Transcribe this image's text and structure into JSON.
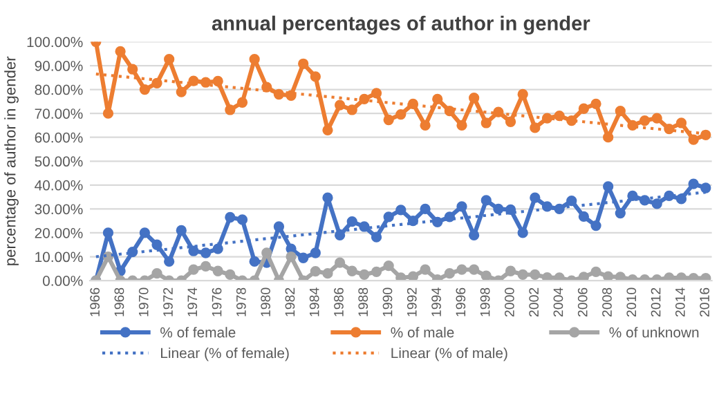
{
  "chart_data": {
    "type": "line",
    "title": "annual percentages of author in gender",
    "ylabel": "percentage of author in gender",
    "categories": [
      "1966",
      null,
      "1968",
      null,
      "1970",
      null,
      "1972",
      null,
      "1974",
      null,
      "1976",
      null,
      "1978",
      null,
      "1980",
      null,
      "1982",
      null,
      "1984",
      null,
      "1986",
      null,
      "1988",
      null,
      "1990",
      null,
      "1992",
      null,
      "1994",
      null,
      "1996",
      null,
      "1998",
      null,
      "2000",
      null,
      "2002",
      null,
      "2004",
      null,
      "2006",
      null,
      "2008",
      null,
      "2010",
      null,
      "2012",
      null,
      "2014",
      null,
      "2016"
    ],
    "series": [
      {
        "name": "% of female",
        "color": "#4472c4",
        "marker": "circle",
        "line_style": "solid",
        "values": [
          0,
          20,
          4,
          12,
          20,
          15,
          8,
          21,
          12.4,
          11.6,
          13.3,
          26.5,
          25.5,
          8,
          7.5,
          22.6,
          13.3,
          9.5,
          11.6,
          34.7,
          19,
          24.7,
          22.6,
          18.2,
          26.7,
          29.6,
          25,
          30,
          24.5,
          26.7,
          31,
          19,
          33.6,
          30,
          29.7,
          20,
          34.7,
          31,
          30,
          33.4,
          26.8,
          23,
          39.4,
          28.2,
          35.5,
          33.6,
          32.2,
          35.5,
          34.2,
          40.5,
          38.8
        ]
      },
      {
        "name": "% of male",
        "color": "#ed7d31",
        "marker": "circle",
        "line_style": "solid",
        "values": [
          100,
          70,
          96,
          88.5,
          80,
          82.7,
          92.7,
          79,
          83.6,
          83,
          83.5,
          71.5,
          74.6,
          92.7,
          81,
          78,
          77.5,
          90.8,
          85.4,
          63,
          73.5,
          71.5,
          76,
          78.5,
          67.3,
          69.6,
          74,
          65,
          76,
          71,
          65,
          76.5,
          66,
          70.6,
          66.5,
          78,
          64,
          68,
          69,
          67,
          72,
          74,
          60,
          71,
          65,
          67,
          68,
          63.5,
          66,
          59,
          61
        ]
      },
      {
        "name": "% of unknown",
        "color": "#a5a5a5",
        "marker": "circle",
        "line_style": "solid",
        "values": [
          0,
          10,
          0,
          0,
          0,
          3,
          0,
          0,
          4.6,
          6,
          4,
          2.5,
          0,
          0,
          11.6,
          0,
          10,
          0,
          3.9,
          3,
          7.5,
          4,
          2.5,
          3.7,
          6.2,
          1.2,
          1.7,
          4.6,
          0.4,
          3,
          4.6,
          4.6,
          2,
          0,
          4,
          2.5,
          2.5,
          1.3,
          1.2,
          0,
          1.5,
          3.7,
          1.7,
          1.5,
          0.4,
          0.4,
          0.4,
          1.2,
          1.2,
          1,
          1
        ]
      },
      {
        "name": "Linear (% of female)",
        "color": "#4472c4",
        "marker": "none",
        "line_style": "dotted",
        "values": [
          10,
          10.5,
          11.1,
          11.6,
          12.2,
          12.7,
          13.2,
          13.8,
          14.3,
          14.9,
          15.4,
          15.9,
          16.5,
          17,
          17.6,
          18.1,
          18.6,
          19.2,
          19.7,
          20.3,
          20.8,
          21.3,
          21.9,
          22.4,
          23,
          23.5,
          24,
          24.6,
          25.1,
          25.7,
          26.2,
          26.7,
          27.3,
          27.8,
          28.4,
          28.9,
          29.4,
          30,
          30.5,
          31.1,
          31.6,
          32.1,
          32.7,
          33.2,
          33.8,
          34.3,
          34.8,
          35.4,
          35.9,
          36.5,
          37
        ]
      },
      {
        "name": "Linear (% of male)",
        "color": "#ed7d31",
        "marker": "none",
        "line_style": "dotted",
        "values": [
          86.5,
          86,
          85.5,
          85,
          84.5,
          84,
          83.5,
          83,
          82.5,
          82,
          81.5,
          81,
          80.5,
          80,
          79.5,
          79,
          78.5,
          78,
          77.5,
          77,
          76.5,
          76,
          75.5,
          75,
          74.5,
          74,
          73.5,
          73,
          72.5,
          72,
          71.5,
          71,
          70.5,
          70,
          69.5,
          69,
          68.5,
          68,
          67.5,
          67,
          66.5,
          66,
          65.5,
          65,
          64.5,
          64,
          63.5,
          63,
          62.5,
          62,
          61.5
        ]
      }
    ],
    "ylim": [
      0,
      100
    ],
    "yticks": [
      {
        "value": 0,
        "label": "0.00%"
      },
      {
        "value": 10,
        "label": "10.00%"
      },
      {
        "value": 20,
        "label": "20.00%"
      },
      {
        "value": 30,
        "label": "30.00%"
      },
      {
        "value": 40,
        "label": "40.00%"
      },
      {
        "value": 50,
        "label": "50.00%"
      },
      {
        "value": 60,
        "label": "60.00%"
      },
      {
        "value": 70,
        "label": "70.00%"
      },
      {
        "value": 80,
        "label": "80.00%"
      },
      {
        "value": 90,
        "label": "90.00%"
      },
      {
        "value": 100,
        "label": "100.00%"
      }
    ],
    "grid": "y",
    "legend": "bottom"
  }
}
